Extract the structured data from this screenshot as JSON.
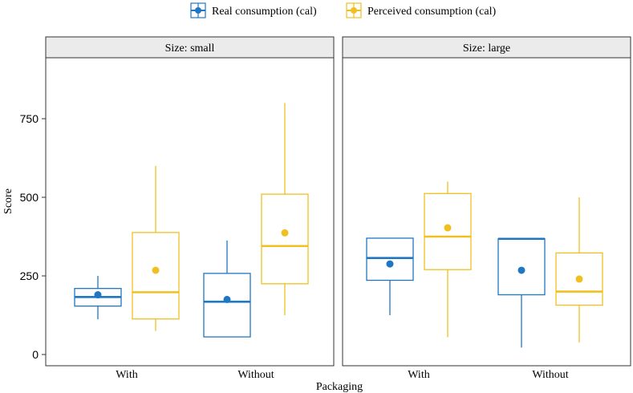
{
  "chart_data": {
    "type": "boxplot",
    "xlabel": "Packaging",
    "ylabel": "Score",
    "ylim": [
      -20,
      940
    ],
    "yticks": [
      0,
      250,
      500,
      750
    ],
    "categories": [
      "With",
      "Without"
    ],
    "legend_position": "top",
    "series": [
      {
        "name": "Real consumption (cal)",
        "color": "#1f77c4"
      },
      {
        "name": "Perceived consumption (cal)",
        "color": "#f0c020"
      }
    ],
    "panels": [
      {
        "title": "Size: small",
        "boxes": [
          {
            "category": "With",
            "series": 0,
            "min": 112,
            "q1": 154,
            "median": 183,
            "q3": 210,
            "max": 250,
            "mean": 190
          },
          {
            "category": "With",
            "series": 1,
            "min": 75,
            "q1": 113,
            "median": 198,
            "q3": 388,
            "max": 600,
            "mean": 268
          },
          {
            "category": "Without",
            "series": 0,
            "min": 56,
            "q1": 56,
            "median": 168,
            "q3": 258,
            "max": 363,
            "mean": 175
          },
          {
            "category": "Without",
            "series": 1,
            "min": 125,
            "q1": 225,
            "median": 345,
            "q3": 510,
            "max": 800,
            "mean": 387
          }
        ]
      },
      {
        "title": "Size: large",
        "boxes": [
          {
            "category": "With",
            "series": 0,
            "min": 125,
            "q1": 236,
            "median": 307,
            "q3": 370,
            "max": 370,
            "mean": 288
          },
          {
            "category": "With",
            "series": 1,
            "min": 55,
            "q1": 270,
            "median": 375,
            "q3": 512,
            "max": 550,
            "mean": 403
          },
          {
            "category": "Without",
            "series": 0,
            "min": 22,
            "q1": 190,
            "median": 368,
            "q3": 368,
            "max": 368,
            "mean": 268
          },
          {
            "category": "Without",
            "series": 1,
            "min": 38,
            "q1": 157,
            "median": 200,
            "q3": 323,
            "max": 500,
            "mean": 240
          }
        ]
      }
    ]
  }
}
